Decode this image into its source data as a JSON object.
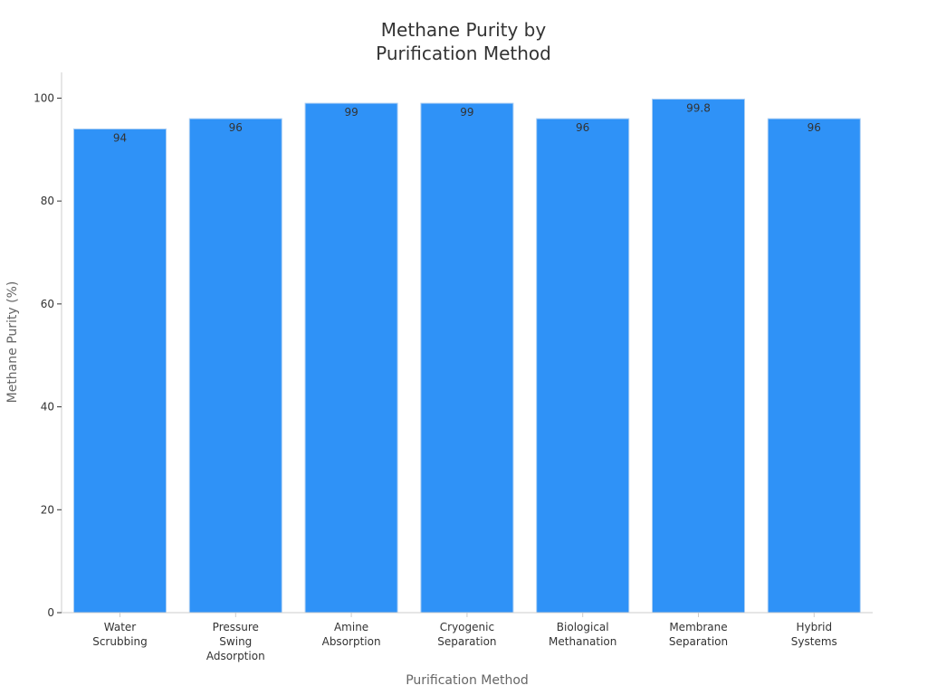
{
  "chart_data": {
    "type": "bar",
    "title": [
      "Methane Purity by",
      "Purification Method"
    ],
    "xlabel": "Purification Method",
    "ylabel": "Methane Purity (%)",
    "categories": [
      [
        "Water",
        "Scrubbing"
      ],
      [
        "Pressure",
        "Swing",
        "Adsorption"
      ],
      [
        "Amine",
        "Absorption"
      ],
      [
        "Cryogenic",
        "Separation"
      ],
      [
        "Biological",
        "Methanation"
      ],
      [
        "Membrane",
        "Separation"
      ],
      [
        "Hybrid",
        "Systems"
      ]
    ],
    "values": [
      94,
      96,
      99,
      99,
      96,
      99.8,
      96
    ],
    "value_labels": [
      "94",
      "96",
      "99",
      "99",
      "96",
      "99.8",
      "96"
    ],
    "y_ticks": [
      "0",
      "20",
      "40",
      "60",
      "80",
      "100"
    ],
    "ylim": [
      0,
      105
    ],
    "grid": false,
    "legend": "none",
    "colors": {
      "bar": "#2f92f7",
      "bar_edge": "#a9cdf3",
      "axis": "#cccccc"
    }
  }
}
